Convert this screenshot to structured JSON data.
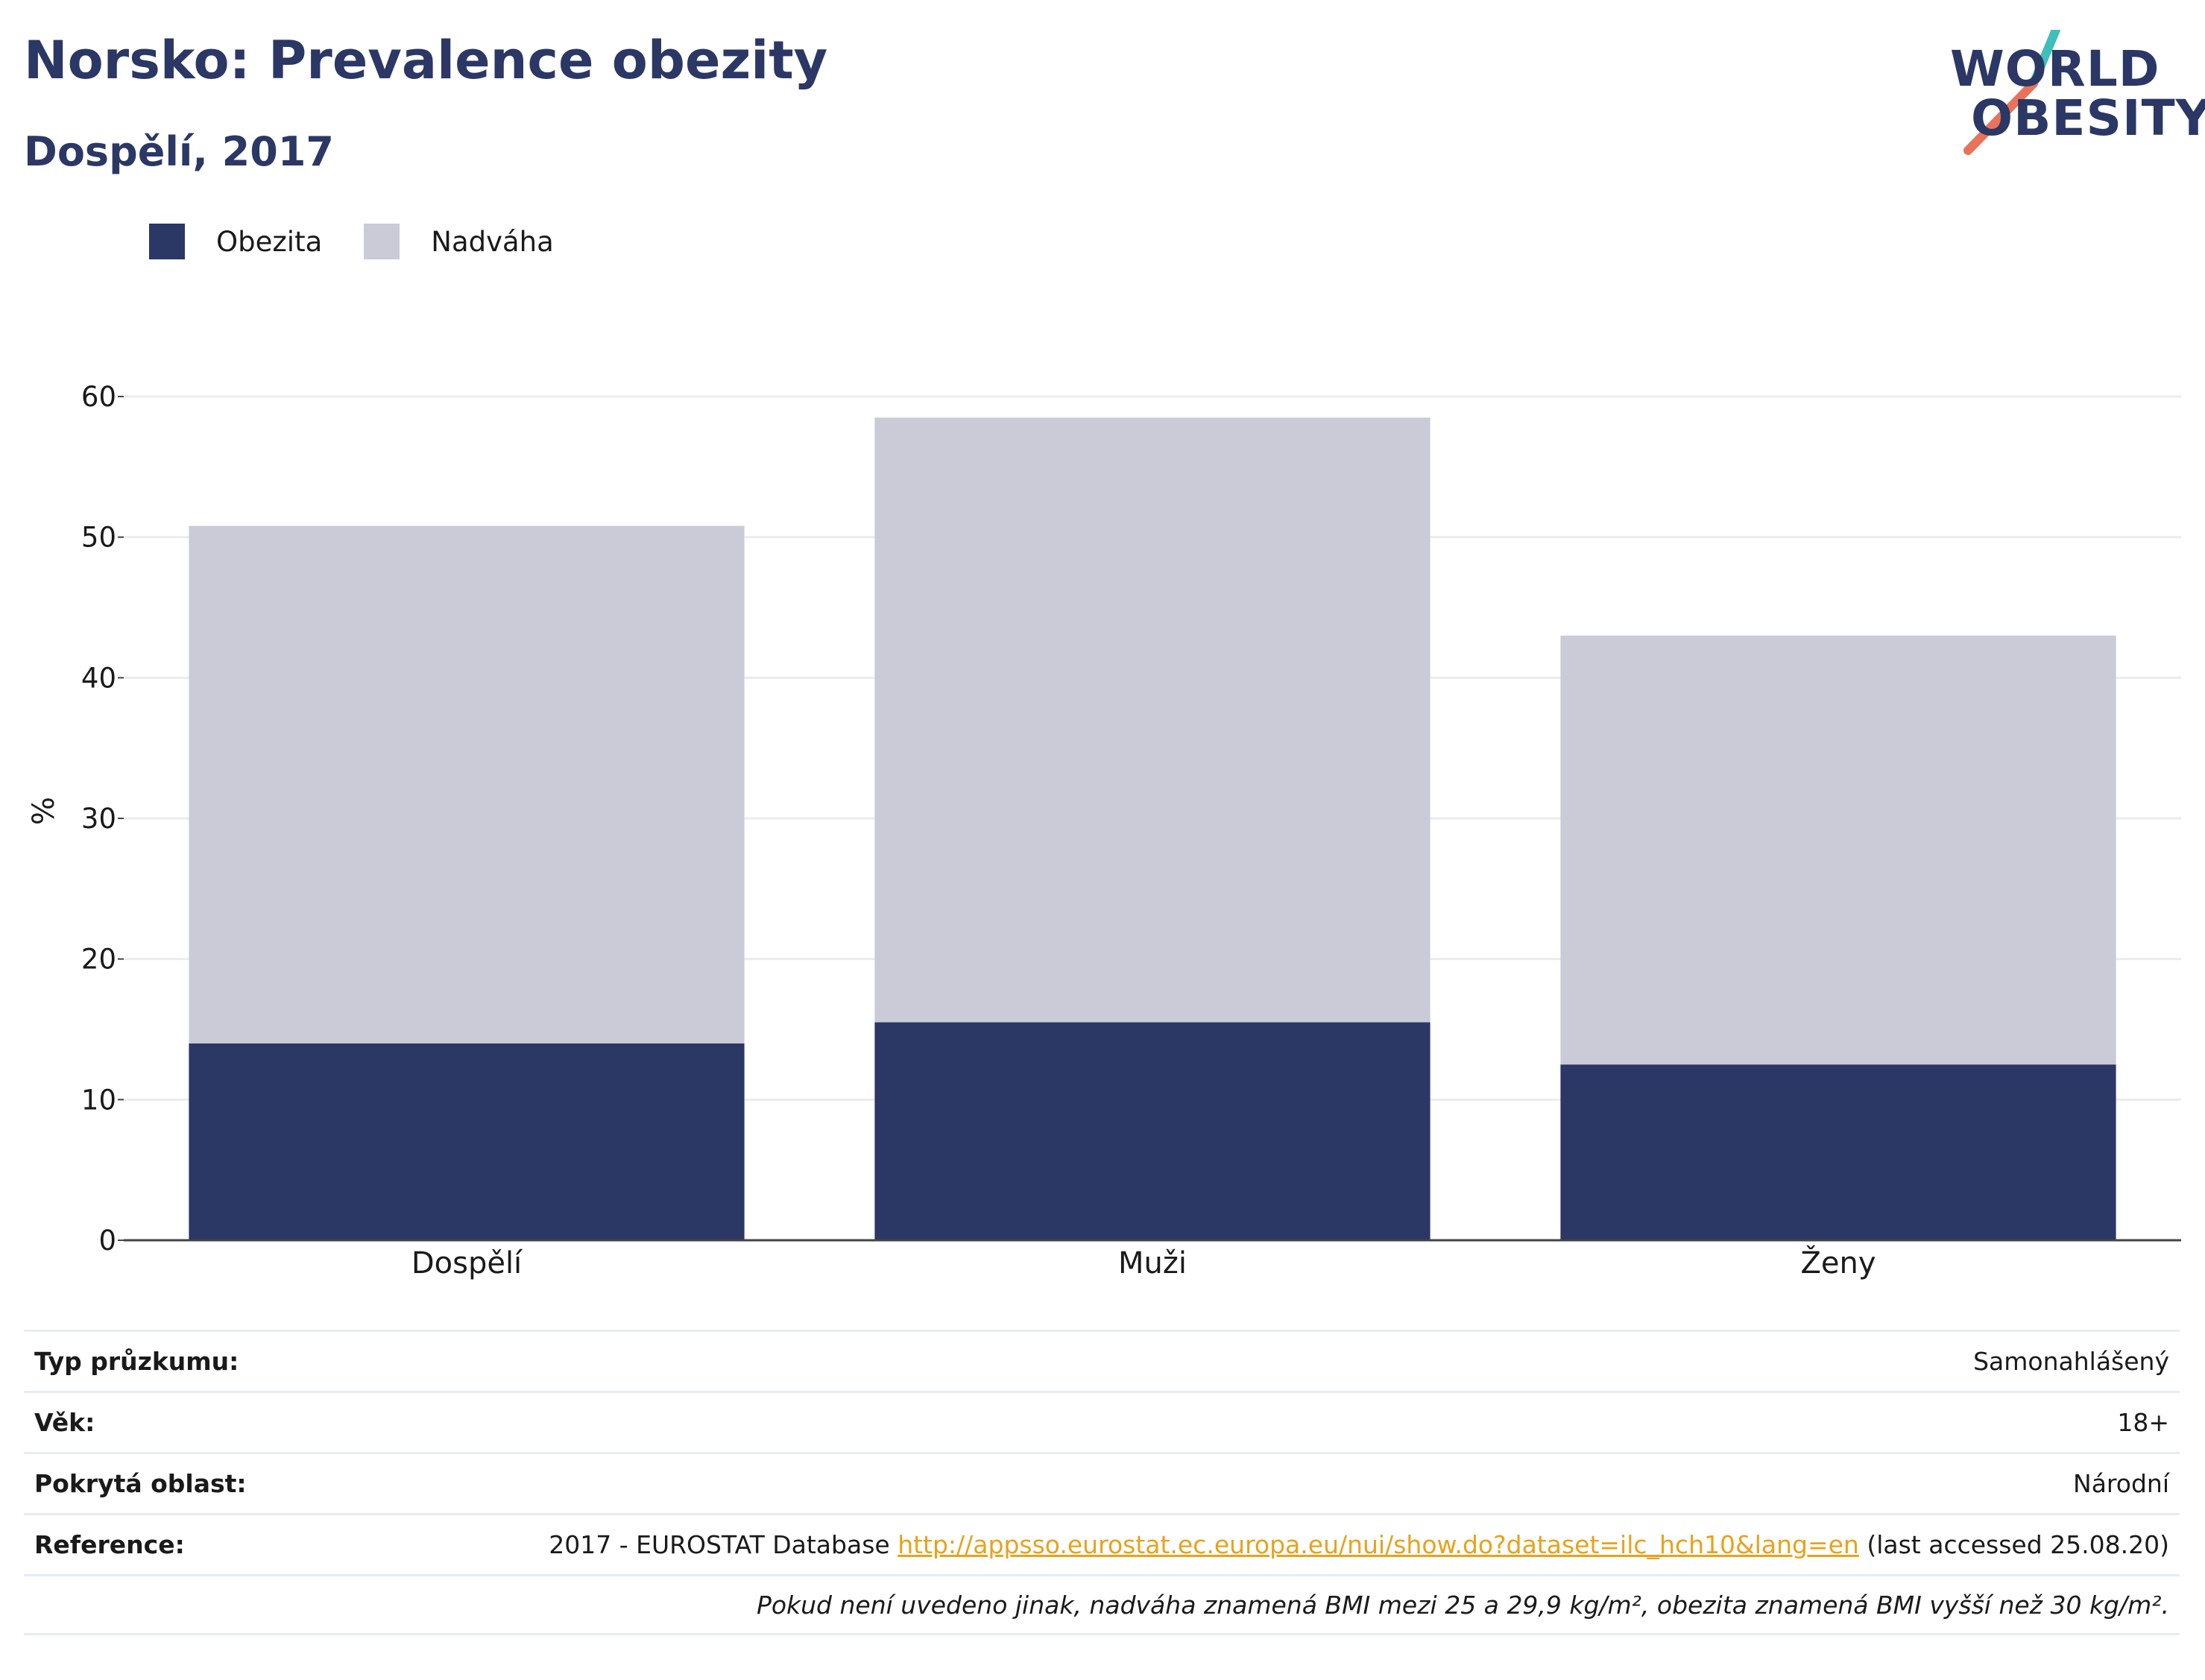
{
  "header": {
    "title": "Norsko: Prevalence obezity",
    "subtitle": "Dospělí, 2017"
  },
  "logo": {
    "line1": "WORLD",
    "line2": "OBESITY",
    "colors": {
      "text": "#2b3765",
      "slash_top": "#3fbfb9",
      "slash_bottom": "#e8735a"
    }
  },
  "legend": [
    {
      "label": "Obezita",
      "color": "#2b3765"
    },
    {
      "label": "Nadváha",
      "color": "#cacbd7"
    }
  ],
  "chart_data": {
    "type": "bar",
    "stacked": true,
    "categories": [
      "Dospělí",
      "Muži",
      "Ženy"
    ],
    "series": [
      {
        "name": "Obezita",
        "values": [
          14.0,
          15.5,
          12.5
        ],
        "color": "#2b3765"
      },
      {
        "name": "Nadváha",
        "values": [
          36.8,
          43.0,
          30.5
        ],
        "color": "#cacbd7"
      }
    ],
    "ylabel": "%",
    "ylim": [
      0,
      60
    ],
    "yticks": [
      "0",
      "10",
      "20",
      "30",
      "40",
      "50",
      "60"
    ],
    "grid": true,
    "legend_position": "top-left"
  },
  "info": {
    "survey_type": {
      "label": "Typ průzkumu:",
      "value": "Samonahlášený"
    },
    "age": {
      "label": "Věk:",
      "value": "18+"
    },
    "area": {
      "label": "Pokrytá oblast:",
      "value": "Národní"
    },
    "reference": {
      "label": "Reference:",
      "prefix": "2017 - EUROSTAT Database ",
      "link": "http://appsso.eurostat.ec.europa.eu/nui/show.do?dataset=ilc_hch10&lang=en",
      "suffix": " (last accessed 25.08.20)"
    },
    "note": "Pokud není uvedeno jinak, nadváha znamená BMI mezi 25 a 29,9 kg/m², obezita znamená BMI vyšší než 30 kg/m²."
  }
}
